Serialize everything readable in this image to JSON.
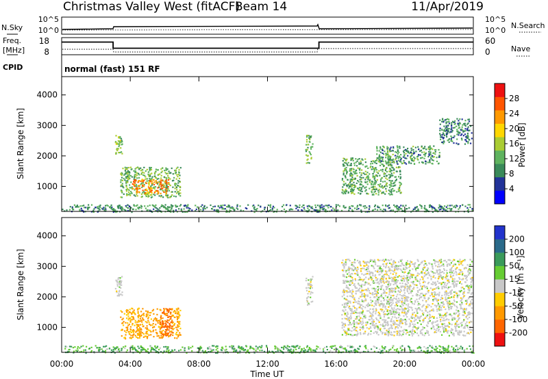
{
  "header": {
    "station": "Christmas Valley West (fitACF)",
    "beam": "Beam 14",
    "date": "11/Apr/2019"
  },
  "noise_panel": {
    "left_label": "N.Sky",
    "right_label": "N.Search",
    "left_ticks": [
      "10^5",
      "10^0"
    ],
    "right_ticks": [
      "10^5",
      "10^0"
    ]
  },
  "freq_panel": {
    "left_label_1": "Freq.",
    "left_label_2": "[MHz]",
    "right_label": "Nave",
    "left_ticks": [
      "18",
      "8"
    ],
    "right_ticks": [
      "60",
      "0"
    ],
    "freq_steps_mhz": [
      {
        "start_h": 0,
        "end_h": 3.0,
        "value": 15.5
      },
      {
        "start_h": 3.0,
        "end_h": 15.0,
        "value": 10.5
      },
      {
        "start_h": 15.0,
        "end_h": 24.0,
        "value": 15.5
      }
    ]
  },
  "cpid": {
    "label": "CPID",
    "text": "normal (fast) 151 RF"
  },
  "chart_data": [
    {
      "type": "heatmap",
      "name": "power",
      "ylabel": "Slant Range [km]",
      "x_ticks": [
        "00:00",
        "04:00",
        "08:00",
        "12:00",
        "16:00",
        "20:00",
        "00:00"
      ],
      "x_range_hours": [
        0,
        24
      ],
      "y_ticks": [
        1000,
        2000,
        3000,
        4000
      ],
      "y_range_km": [
        180,
        4600
      ],
      "colorbar": {
        "label": "Power [dB]",
        "ticks": [
          4,
          8,
          12,
          16,
          20,
          24,
          28
        ],
        "range": [
          0,
          32
        ],
        "colors": [
          "#0000ff",
          "#223399",
          "#3a8a5a",
          "#5fb35f",
          "#aacc33",
          "#ffd700",
          "#ff9900",
          "#ff5500",
          "#ee1111"
        ]
      },
      "regions": [
        {
          "t0": 3.1,
          "t1": 3.5,
          "r0": 2050,
          "r1": 2700,
          "value": 14
        },
        {
          "t0": 3.4,
          "t1": 6.9,
          "r0": 650,
          "r1": 1650,
          "value": 13
        },
        {
          "t0": 4.1,
          "t1": 6.2,
          "r0": 780,
          "r1": 1250,
          "value": 25
        },
        {
          "t0": 14.2,
          "t1": 14.6,
          "r0": 1750,
          "r1": 2700,
          "value": 13
        },
        {
          "t0": 16.3,
          "t1": 19.8,
          "r0": 750,
          "r1": 1950,
          "value": 11
        },
        {
          "t0": 18.3,
          "t1": 22.0,
          "r0": 1750,
          "r1": 2350,
          "value": 10
        },
        {
          "t0": 22.0,
          "t1": 23.9,
          "r0": 2400,
          "r1": 3250,
          "value": 8
        },
        {
          "t0": 0.0,
          "t1": 24.0,
          "r0": 180,
          "r1": 420,
          "value": 9
        }
      ]
    },
    {
      "type": "heatmap",
      "name": "velocity",
      "ylabel": "Slant Range [km]",
      "xlabel": "Time UT",
      "x_ticks": [
        "00:00",
        "04:00",
        "08:00",
        "12:00",
        "16:00",
        "20:00",
        "00:00"
      ],
      "x_range_hours": [
        0,
        24
      ],
      "y_ticks": [
        1000,
        2000,
        3000,
        4000
      ],
      "y_range_km": [
        180,
        4600
      ],
      "colorbar": {
        "label": "Velocity [m s⁻¹]",
        "ticks": [
          "200",
          "100",
          "50",
          "15",
          "-15",
          "-50",
          "-100",
          "-200"
        ],
        "colors": [
          "#2233cc",
          "#2a6a8a",
          "#3a9a5a",
          "#66cc33",
          "#c8c8c8",
          "#ffcc00",
          "#ff9900",
          "#ff6600",
          "#ee1111"
        ]
      },
      "regions": [
        {
          "t0": 3.1,
          "t1": 3.5,
          "r0": 2050,
          "r1": 2700,
          "value": 0
        },
        {
          "t0": 3.4,
          "t1": 6.9,
          "r0": 650,
          "r1": 1650,
          "value": -40
        },
        {
          "t0": 5.7,
          "t1": 6.4,
          "r0": 750,
          "r1": 1650,
          "value": -120
        },
        {
          "t0": 14.2,
          "t1": 14.6,
          "r0": 1750,
          "r1": 2700,
          "value": 0
        },
        {
          "t0": 16.3,
          "t1": 23.9,
          "r0": 750,
          "r1": 3250,
          "value": 0
        },
        {
          "t0": 0.0,
          "t1": 24.0,
          "r0": 180,
          "r1": 420,
          "value": 30
        }
      ]
    }
  ],
  "colors": {
    "axis": "#000000",
    "background": "#ffffff"
  }
}
